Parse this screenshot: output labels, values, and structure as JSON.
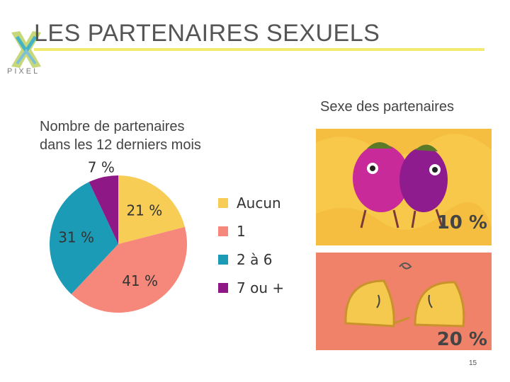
{
  "slide": {
    "title": "LES PARTENAIRES SEXUELS",
    "page_number": "15",
    "logo_text": "PIXEL"
  },
  "left_chart": {
    "title_line1": "Nombre de partenaires",
    "title_line2": "dans les 12 derniers mois"
  },
  "right": {
    "title": "Sexe des partenaires",
    "top_panel_pct": "10 %",
    "bottom_panel_pct": "20 %"
  },
  "chart_data": {
    "type": "pie",
    "title": "Nombre de partenaires dans les 12 derniers mois",
    "slices": [
      {
        "label": "Aucun",
        "value": 21,
        "value_label": "21 %",
        "color": "#f7cd56"
      },
      {
        "label": "1",
        "value": 41,
        "value_label": "41 %",
        "color": "#f5887a"
      },
      {
        "label": "2 à 6",
        "value": 31,
        "value_label": "31 %",
        "color": "#1b9bb5"
      },
      {
        "label": "7 ou +",
        "value": 7,
        "value_label": "7 %",
        "color": "#8e1885"
      }
    ],
    "legend_placement": "right"
  },
  "colors": {
    "title_underline": "#f3ea70",
    "panel_top": "#f7c84a",
    "panel_bottom": "#f0826a"
  }
}
